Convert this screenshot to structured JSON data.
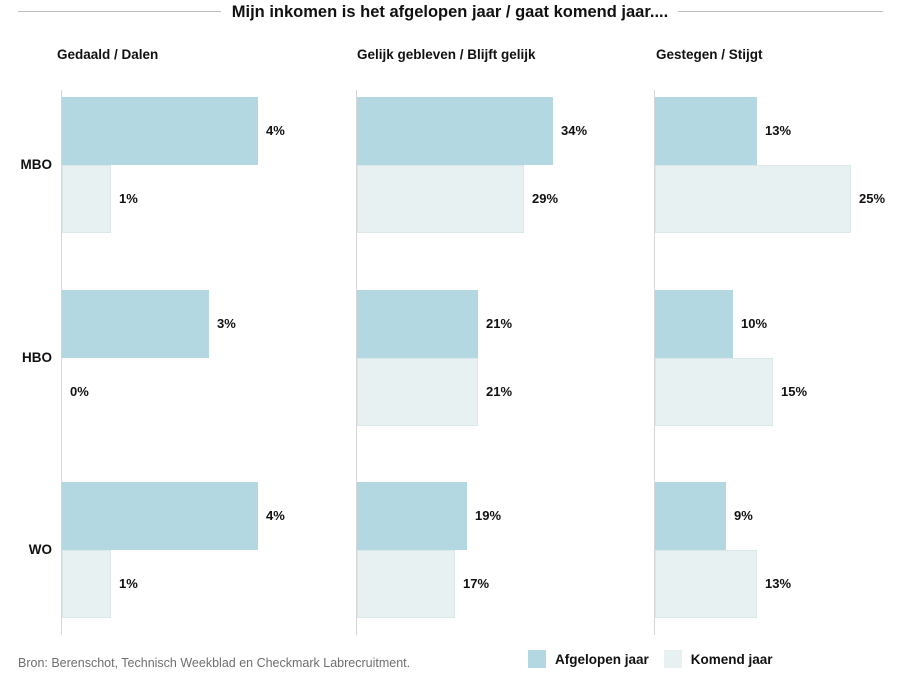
{
  "chart_data": {
    "type": "bar",
    "orientation": "horizontal",
    "title": "Mijn inkomen is het afgelopen jaar / gaat komend jaar....",
    "categories": [
      "MBO",
      "HBO",
      "WO"
    ],
    "panels": [
      {
        "title": "Gedaald / Dalen",
        "series": [
          {
            "name": "Afgelopen jaar",
            "values": [
              4,
              3,
              4
            ]
          },
          {
            "name": "Komend jaar",
            "values": [
              1,
              0,
              1
            ]
          }
        ]
      },
      {
        "title": "Gelijk gebleven / Blijft gelijk",
        "series": [
          {
            "name": "Afgelopen jaar",
            "values": [
              34,
              21,
              19
            ]
          },
          {
            "name": "Komend jaar",
            "values": [
              29,
              21,
              17
            ]
          }
        ]
      },
      {
        "title": "Gestegen / Stijgt",
        "series": [
          {
            "name": "Afgelopen jaar",
            "values": [
              13,
              10,
              9
            ]
          },
          {
            "name": "Komend jaar",
            "values": [
              25,
              15,
              13
            ]
          }
        ]
      }
    ],
    "value_suffix": "%",
    "legend": [
      {
        "label": "Afgelopen jaar",
        "color": "#b4d8e1"
      },
      {
        "label": "Komend jaar",
        "color": "#e7f1f2"
      }
    ],
    "colors": {
      "afgelopen_jaar": "#b4d8e1",
      "komend_jaar": "#e7f1f2",
      "axis_line": "#d6d6d6",
      "title_rule": "#bfbfbf",
      "text": "#111111",
      "source_text": "#6e6e6e"
    },
    "layout_hints": {
      "grid": "off",
      "legend_position": "bottom-right",
      "each_panel_scaled_to_its_max": true
    },
    "source": "Bron: Berenschot, Technisch Weekblad en Checkmark Labrecruitment."
  }
}
